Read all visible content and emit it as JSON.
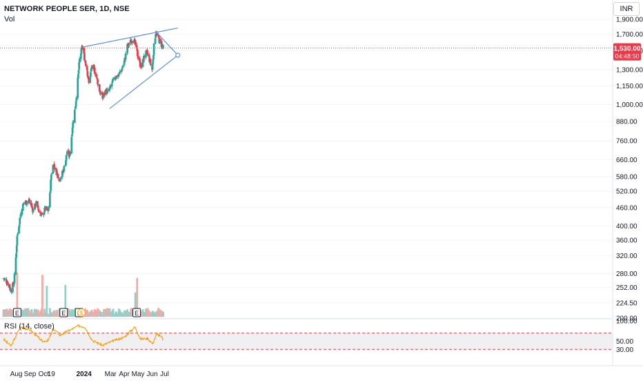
{
  "header": {
    "title": "NETWORK PEOPLE SER, 1D, NSE",
    "volume_label": "Vol",
    "rsi_label": "RSI (14, close)",
    "currency": "INR"
  },
  "price_tag": {
    "value": "1,530.00",
    "countdown": "04:48:50"
  },
  "colors": {
    "up": "#26a69a",
    "down": "#f23645",
    "vol_up": "#8fd1c8",
    "vol_down": "#f7a9a7",
    "trendline": "#5b8def",
    "rsi": "#ff9800",
    "rsi_band": "#f0f0f3",
    "rsi_ref": "#f23645"
  },
  "events": [
    {
      "label": "E",
      "date": "2023-08-03"
    },
    {
      "label": "E",
      "date": "2023-11-16"
    },
    {
      "label": "E",
      "date": "2023-12-21"
    },
    {
      "label": "E",
      "date": "2024-04-29"
    }
  ],
  "dividend_marker": {
    "label": "$",
    "date": "2023-12-26"
  },
  "chart_data": {
    "type": "candlestick",
    "price_axis": {
      "scale": "log",
      "ticks": [
        200,
        224.5,
        252,
        280,
        320,
        360,
        400,
        460,
        520,
        580,
        660,
        760,
        880,
        1000,
        1150,
        1300,
        1500,
        1700,
        1900
      ],
      "tick_labels": [
        "200.00",
        "224.50",
        "252.00",
        "280.00",
        "320.00",
        "360.00",
        "400.00",
        "460.00",
        "520.00",
        "580.00",
        "660.00",
        "760.00",
        "880.00",
        "1,000.00",
        "1,150.00",
        "1,300.00",
        "1,500.00",
        "1,700.00",
        "1,900.00"
      ]
    },
    "rsi_axis": {
      "ticks": [
        100,
        50,
        30
      ],
      "tick_labels": [
        "100.00",
        "50.00",
        "30.00"
      ],
      "bands": [
        70,
        30
      ]
    },
    "x_axis": {
      "labels": [
        {
          "text": "Aug",
          "date": "2023-08-01"
        },
        {
          "text": "Sep",
          "date": "2023-09-01"
        },
        {
          "text": "Oct",
          "date": "2023-10-02"
        },
        {
          "text": "19",
          "date": "2023-10-19"
        },
        {
          "text": "2024",
          "date": "2024-01-01",
          "bold": true
        },
        {
          "text": "Mar",
          "date": "2024-03-01"
        },
        {
          "text": "Apr",
          "date": "2024-04-01"
        },
        {
          "text": "May",
          "date": "2024-05-02"
        },
        {
          "text": "Jun",
          "date": "2024-06-03"
        },
        {
          "text": "Jul",
          "date": "2024-07-01"
        }
      ]
    },
    "trendlines": [
      {
        "from": {
          "date": "2024-01-01",
          "price": 1545
        },
        "to": {
          "date": "2024-07-31",
          "price": 1780
        }
      },
      {
        "from": {
          "date": "2024-02-28",
          "price": 970
        },
        "to": {
          "date": "2024-07-31",
          "price": 1450
        }
      },
      {
        "from": {
          "date": "2024-06-10",
          "price": 1740
        },
        "to": {
          "date": "2024-07-31",
          "price": 1450
        }
      }
    ],
    "last_price": 1530,
    "ohlc_anchors": [
      {
        "date": "2023-07-03",
        "close": 270
      },
      {
        "date": "2023-07-12",
        "close": 262
      },
      {
        "date": "2023-07-20",
        "close": 247
      },
      {
        "date": "2023-07-27",
        "close": 262
      },
      {
        "date": "2023-08-01",
        "close": 330
      },
      {
        "date": "2023-08-03",
        "close": 370
      },
      {
        "date": "2023-08-10",
        "close": 432
      },
      {
        "date": "2023-08-18",
        "close": 478
      },
      {
        "date": "2023-08-25",
        "close": 480
      },
      {
        "date": "2023-08-31",
        "close": 483
      },
      {
        "date": "2023-09-08",
        "close": 450
      },
      {
        "date": "2023-09-15",
        "close": 475
      },
      {
        "date": "2023-09-22",
        "close": 445
      },
      {
        "date": "2023-09-29",
        "close": 432
      },
      {
        "date": "2023-10-05",
        "close": 455
      },
      {
        "date": "2023-10-12",
        "close": 450
      },
      {
        "date": "2023-10-16",
        "close": 505
      },
      {
        "date": "2023-10-19",
        "close": 590
      },
      {
        "date": "2023-10-24",
        "close": 640
      },
      {
        "date": "2023-10-31",
        "close": 600
      },
      {
        "date": "2023-11-07",
        "close": 570
      },
      {
        "date": "2023-11-14",
        "close": 600
      },
      {
        "date": "2023-11-20",
        "close": 645
      },
      {
        "date": "2023-11-24",
        "close": 705
      },
      {
        "date": "2023-11-28",
        "close": 680
      },
      {
        "date": "2023-12-01",
        "close": 700
      },
      {
        "date": "2023-12-06",
        "close": 850
      },
      {
        "date": "2023-12-13",
        "close": 1000
      },
      {
        "date": "2023-12-18",
        "close": 1200
      },
      {
        "date": "2023-12-22",
        "close": 1400
      },
      {
        "date": "2023-12-28",
        "close": 1550
      },
      {
        "date": "2024-01-03",
        "close": 1400
      },
      {
        "date": "2024-01-08",
        "close": 1300
      },
      {
        "date": "2024-01-12",
        "close": 1170
      },
      {
        "date": "2024-01-18",
        "close": 1320
      },
      {
        "date": "2024-01-24",
        "close": 1310
      },
      {
        "date": "2024-01-31",
        "close": 1200
      },
      {
        "date": "2024-02-06",
        "close": 1100
      },
      {
        "date": "2024-02-12",
        "close": 1050
      },
      {
        "date": "2024-02-19",
        "close": 1110
      },
      {
        "date": "2024-02-26",
        "close": 1100
      },
      {
        "date": "2024-03-05",
        "close": 1180
      },
      {
        "date": "2024-03-12",
        "close": 1230
      },
      {
        "date": "2024-03-19",
        "close": 1250
      },
      {
        "date": "2024-03-26",
        "close": 1300
      },
      {
        "date": "2024-04-02",
        "close": 1400
      },
      {
        "date": "2024-04-08",
        "close": 1550
      },
      {
        "date": "2024-04-15",
        "close": 1600
      },
      {
        "date": "2024-04-22",
        "close": 1650
      },
      {
        "date": "2024-04-29",
        "close": 1500
      },
      {
        "date": "2024-05-06",
        "close": 1360
      },
      {
        "date": "2024-05-10",
        "close": 1330
      },
      {
        "date": "2024-05-16",
        "close": 1440
      },
      {
        "date": "2024-05-22",
        "close": 1480
      },
      {
        "date": "2024-05-28",
        "close": 1400
      },
      {
        "date": "2024-06-03",
        "close": 1300
      },
      {
        "date": "2024-06-07",
        "close": 1550
      },
      {
        "date": "2024-06-11",
        "close": 1720
      },
      {
        "date": "2024-06-14",
        "close": 1680
      },
      {
        "date": "2024-06-19",
        "close": 1620
      },
      {
        "date": "2024-06-24",
        "close": 1570
      },
      {
        "date": "2024-06-28",
        "close": 1530
      }
    ],
    "volume_spikes": [
      {
        "date": "2023-08-03",
        "level": 1.0,
        "up": false
      },
      {
        "date": "2023-09-29",
        "level": 0.95,
        "up": false
      },
      {
        "date": "2023-10-09",
        "level": 0.7,
        "up": true
      },
      {
        "date": "2023-11-20",
        "level": 0.72,
        "up": true
      },
      {
        "date": "2024-04-26",
        "level": 0.55,
        "up": true
      },
      {
        "date": "2024-04-30",
        "level": 0.88,
        "up": false
      }
    ],
    "rsi_anchors": [
      {
        "date": "2023-07-03",
        "value": 55
      },
      {
        "date": "2023-07-20",
        "value": 38
      },
      {
        "date": "2023-08-10",
        "value": 85
      },
      {
        "date": "2023-09-01",
        "value": 78
      },
      {
        "date": "2023-09-29",
        "value": 50
      },
      {
        "date": "2023-10-12",
        "value": 52
      },
      {
        "date": "2023-10-24",
        "value": 80
      },
      {
        "date": "2023-11-08",
        "value": 65
      },
      {
        "date": "2023-11-24",
        "value": 74
      },
      {
        "date": "2023-12-20",
        "value": 88
      },
      {
        "date": "2024-01-03",
        "value": 85
      },
      {
        "date": "2024-01-20",
        "value": 52
      },
      {
        "date": "2024-02-12",
        "value": 40
      },
      {
        "date": "2024-03-05",
        "value": 50
      },
      {
        "date": "2024-04-01",
        "value": 60
      },
      {
        "date": "2024-04-25",
        "value": 85
      },
      {
        "date": "2024-05-08",
        "value": 55
      },
      {
        "date": "2024-05-24",
        "value": 57
      },
      {
        "date": "2024-06-04",
        "value": 44
      },
      {
        "date": "2024-06-14",
        "value": 70
      },
      {
        "date": "2024-06-28",
        "value": 55
      }
    ]
  }
}
